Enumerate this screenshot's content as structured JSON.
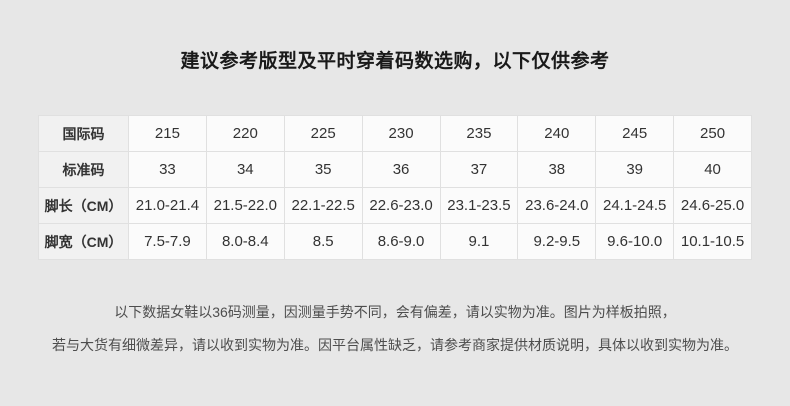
{
  "title": "建议参考版型及平时穿着码数选购，以下仅供参考",
  "size_table": {
    "rows": [
      {
        "label": "国际码",
        "values": [
          "215",
          "220",
          "225",
          "230",
          "235",
          "240",
          "245",
          "250"
        ]
      },
      {
        "label": "标准码",
        "values": [
          "33",
          "34",
          "35",
          "36",
          "37",
          "38",
          "39",
          "40"
        ]
      },
      {
        "label": "脚长（CM）",
        "values": [
          "21.0-21.4",
          "21.5-22.0",
          "22.1-22.5",
          "22.6-23.0",
          "23.1-23.5",
          "23.6-24.0",
          "24.1-24.5",
          "24.6-25.0"
        ]
      },
      {
        "label": "脚宽（CM）",
        "values": [
          "7.5-7.9",
          "8.0-8.4",
          "8.5",
          "8.6-9.0",
          "9.1",
          "9.2-9.5",
          "9.6-10.0",
          "10.1-10.5"
        ]
      }
    ]
  },
  "disclaimer": {
    "line1": "以下数据女鞋以36码测量，因测量手势不同，会有偏差，请以实物为准。图片为样板拍照，",
    "line2": "若与大货有细微差异，请以收到实物为准。因平台属性缺乏，请参考商家提供材质说明，具体以收到实物为准。"
  },
  "colors": {
    "page_bg": "#e7e7e7",
    "cell_bg": "#fbfbfb",
    "label_bg": "#f1f1f1",
    "border": "#e0e0e0",
    "title_text": "#1a1a1a",
    "table_text": "#333333",
    "disclaimer_text": "#4d4d4d"
  }
}
